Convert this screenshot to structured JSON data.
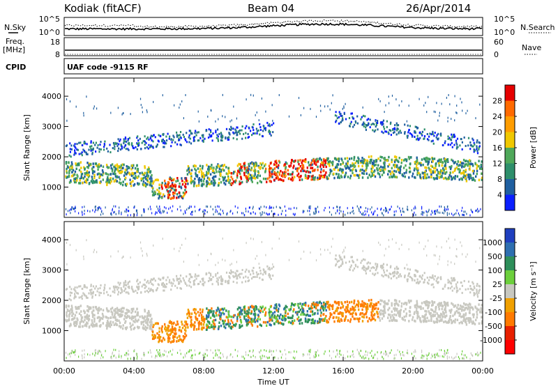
{
  "header": {
    "station": "Kodiak (fitACF)",
    "beam": "Beam 04",
    "date": "26/Apr/2014"
  },
  "noise_panel": {
    "left_label": "N.Sky",
    "right_label": "N.Search",
    "left_ticks": [
      "10^5",
      "10^0"
    ],
    "right_ticks": [
      "10^5",
      "10^0"
    ]
  },
  "freq_panel": {
    "left_label_1": "Freq.",
    "left_label_2": "[MHz]",
    "right_label": "Nave",
    "left_ticks": [
      "18",
      "8"
    ],
    "right_ticks": [
      "60",
      "0"
    ]
  },
  "cpid_panel": {
    "left_label": "CPID",
    "text": "UAF code -9115 RF"
  },
  "chart_data": [
    {
      "type": "heatmap",
      "quantity": "Power",
      "ylabel": "Slant Range [km]",
      "ylim": [
        0,
        4600
      ],
      "yticks": [
        "1000",
        "2000",
        "3000",
        "4000"
      ],
      "colorbar_label": "Power [dB]",
      "colorbar_ticks": [
        "28",
        "24",
        "20",
        "16",
        "12",
        "8",
        "4"
      ],
      "colorbar_colors": [
        "#e60000",
        "#ff6a00",
        "#ff9d00",
        "#f0c800",
        "#4fa85a",
        "#2e8f6b",
        "#1f5fa0",
        "#0a1fff"
      ],
      "grid": false
    },
    {
      "type": "heatmap",
      "quantity": "Velocity",
      "ylabel": "Slant Range [km]",
      "ylim": [
        0,
        4600
      ],
      "yticks": [
        "1000",
        "2000",
        "3000",
        "4000"
      ],
      "colorbar_label": "Velocity [m s⁻¹]",
      "colorbar_ticks": [
        "1000",
        "500",
        "100",
        "25",
        "-25",
        "-100",
        "-500",
        "-1000"
      ],
      "colorbar_colors": [
        "#1f3fbf",
        "#2e6fb0",
        "#2e8f5a",
        "#6ccf3c",
        "#c8c8c0",
        "#f0a000",
        "#ff7a00",
        "#e82000",
        "#ff0000"
      ],
      "grid": false
    }
  ],
  "xaxis": {
    "label": "Time UT",
    "ticks": [
      "00:00",
      "04:00",
      "08:00",
      "12:00",
      "16:00",
      "20:00",
      "00:00"
    ]
  }
}
